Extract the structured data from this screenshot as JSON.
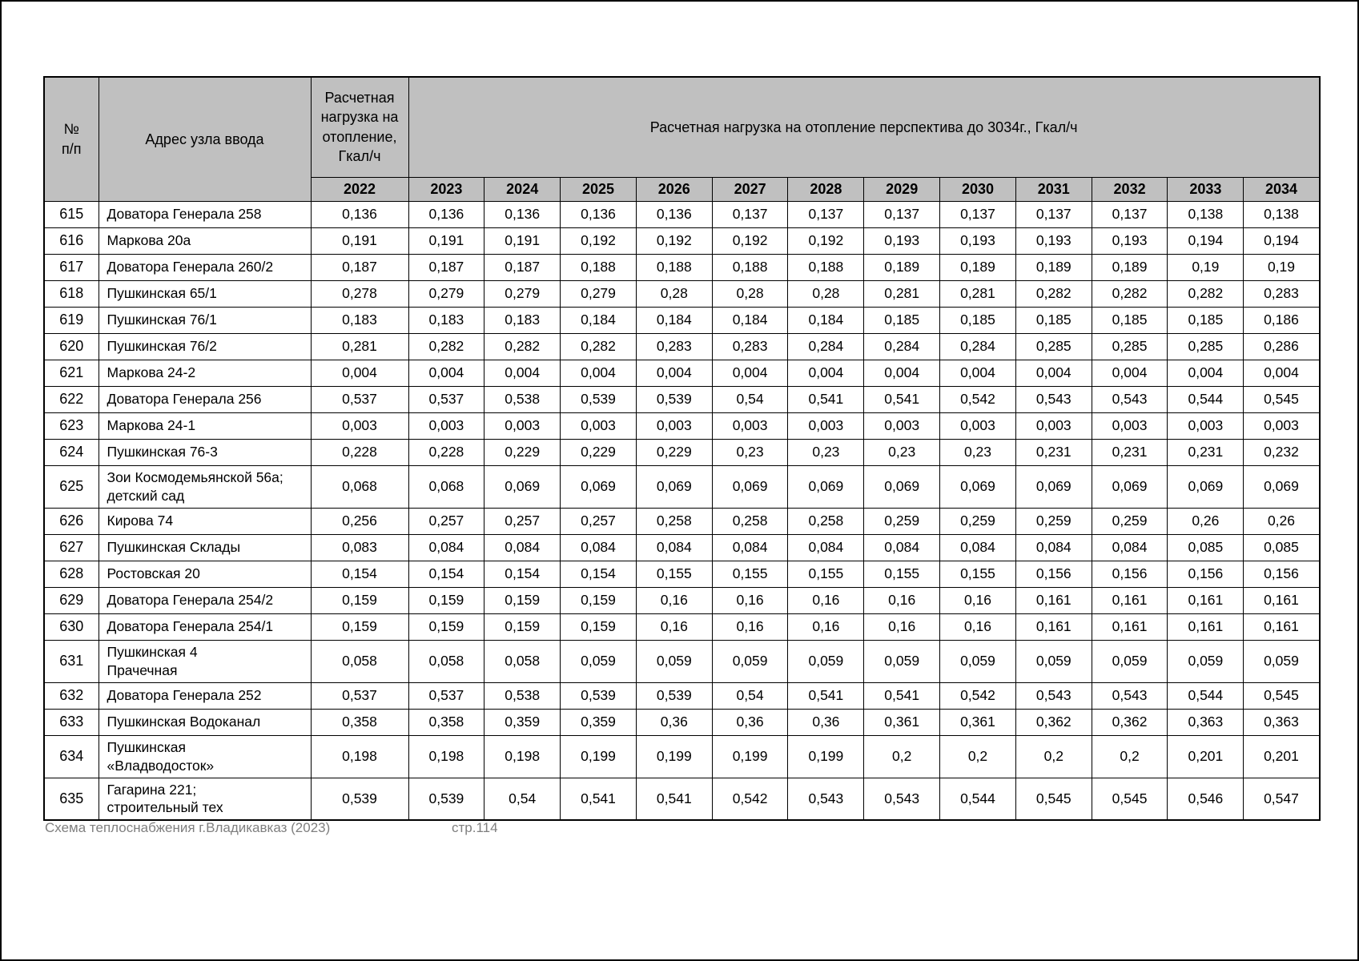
{
  "table": {
    "header": {
      "col_num": "№\nп/п",
      "col_address": "Адрес узла ввода",
      "col_load_2022": "Расчетная нагрузка на отопление, Гкал/ч",
      "col_perspective": "Расчетная нагрузка на отопление перспектива до 3034г., Гкал/ч",
      "years": [
        "2022",
        "2023",
        "2024",
        "2025",
        "2026",
        "2027",
        "2028",
        "2029",
        "2030",
        "2031",
        "2032",
        "2033",
        "2034"
      ]
    },
    "rows": [
      {
        "num": "615",
        "address": "Доватора Генерала 258",
        "values": [
          "0,136",
          "0,136",
          "0,136",
          "0,136",
          "0,136",
          "0,137",
          "0,137",
          "0,137",
          "0,137",
          "0,137",
          "0,137",
          "0,138",
          "0,138"
        ]
      },
      {
        "num": "616",
        "address": "Маркова 20а",
        "values": [
          "0,191",
          "0,191",
          "0,191",
          "0,192",
          "0,192",
          "0,192",
          "0,192",
          "0,193",
          "0,193",
          "0,193",
          "0,193",
          "0,194",
          "0,194"
        ]
      },
      {
        "num": "617",
        "address": "Доватора Генерала 260/2",
        "values": [
          "0,187",
          "0,187",
          "0,187",
          "0,188",
          "0,188",
          "0,188",
          "0,188",
          "0,189",
          "0,189",
          "0,189",
          "0,189",
          "0,19",
          "0,19"
        ]
      },
      {
        "num": "618",
        "address": "Пушкинская 65/1",
        "values": [
          "0,278",
          "0,279",
          "0,279",
          "0,279",
          "0,28",
          "0,28",
          "0,28",
          "0,281",
          "0,281",
          "0,282",
          "0,282",
          "0,282",
          "0,283"
        ]
      },
      {
        "num": "619",
        "address": "Пушкинская 76/1",
        "values": [
          "0,183",
          "0,183",
          "0,183",
          "0,184",
          "0,184",
          "0,184",
          "0,184",
          "0,185",
          "0,185",
          "0,185",
          "0,185",
          "0,185",
          "0,186"
        ]
      },
      {
        "num": "620",
        "address": "Пушкинская 76/2",
        "values": [
          "0,281",
          "0,282",
          "0,282",
          "0,282",
          "0,283",
          "0,283",
          "0,284",
          "0,284",
          "0,284",
          "0,285",
          "0,285",
          "0,285",
          "0,286"
        ]
      },
      {
        "num": "621",
        "address": "Маркова 24-2",
        "values": [
          "0,004",
          "0,004",
          "0,004",
          "0,004",
          "0,004",
          "0,004",
          "0,004",
          "0,004",
          "0,004",
          "0,004",
          "0,004",
          "0,004",
          "0,004"
        ]
      },
      {
        "num": "622",
        "address": "Доватора Генерала 256",
        "values": [
          "0,537",
          "0,537",
          "0,538",
          "0,539",
          "0,539",
          "0,54",
          "0,541",
          "0,541",
          "0,542",
          "0,543",
          "0,543",
          "0,544",
          "0,545"
        ]
      },
      {
        "num": "623",
        "address": "Маркова 24-1",
        "values": [
          "0,003",
          "0,003",
          "0,003",
          "0,003",
          "0,003",
          "0,003",
          "0,003",
          "0,003",
          "0,003",
          "0,003",
          "0,003",
          "0,003",
          "0,003"
        ]
      },
      {
        "num": "624",
        "address": "Пушкинская 76-3",
        "values": [
          "0,228",
          "0,228",
          "0,229",
          "0,229",
          "0,229",
          "0,23",
          "0,23",
          "0,23",
          "0,23",
          "0,231",
          "0,231",
          "0,231",
          "0,232"
        ]
      },
      {
        "num": "625",
        "address": "Зои Космодемьянской 56а; детский сад",
        "values": [
          "0,068",
          "0,068",
          "0,069",
          "0,069",
          "0,069",
          "0,069",
          "0,069",
          "0,069",
          "0,069",
          "0,069",
          "0,069",
          "0,069",
          "0,069"
        ]
      },
      {
        "num": "626",
        "address": "Кирова 74",
        "values": [
          "0,256",
          "0,257",
          "0,257",
          "0,257",
          "0,258",
          "0,258",
          "0,258",
          "0,259",
          "0,259",
          "0,259",
          "0,259",
          "0,26",
          "0,26"
        ]
      },
      {
        "num": "627",
        "address": "Пушкинская Склады",
        "values": [
          "0,083",
          "0,084",
          "0,084",
          "0,084",
          "0,084",
          "0,084",
          "0,084",
          "0,084",
          "0,084",
          "0,084",
          "0,084",
          "0,085",
          "0,085"
        ]
      },
      {
        "num": "628",
        "address": "Ростовская 20",
        "values": [
          "0,154",
          "0,154",
          "0,154",
          "0,154",
          "0,155",
          "0,155",
          "0,155",
          "0,155",
          "0,155",
          "0,156",
          "0,156",
          "0,156",
          "0,156"
        ]
      },
      {
        "num": "629",
        "address": "Доватора Генерала 254/2",
        "values": [
          "0,159",
          "0,159",
          "0,159",
          "0,159",
          "0,16",
          "0,16",
          "0,16",
          "0,16",
          "0,16",
          "0,161",
          "0,161",
          "0,161",
          "0,161"
        ]
      },
      {
        "num": "630",
        "address": "Доватора Генерала 254/1",
        "values": [
          "0,159",
          "0,159",
          "0,159",
          "0,159",
          "0,16",
          "0,16",
          "0,16",
          "0,16",
          "0,16",
          "0,161",
          "0,161",
          "0,161",
          "0,161"
        ]
      },
      {
        "num": "631",
        "address": "Пушкинская 4\nПрачечная",
        "values": [
          "0,058",
          "0,058",
          "0,058",
          "0,059",
          "0,059",
          "0,059",
          "0,059",
          "0,059",
          "0,059",
          "0,059",
          "0,059",
          "0,059",
          "0,059"
        ]
      },
      {
        "num": "632",
        "address": "Доватора Генерала 252",
        "values": [
          "0,537",
          "0,537",
          "0,538",
          "0,539",
          "0,539",
          "0,54",
          "0,541",
          "0,541",
          "0,542",
          "0,543",
          "0,543",
          "0,544",
          "0,545"
        ]
      },
      {
        "num": "633",
        "address": "Пушкинская Водоканал",
        "values": [
          "0,358",
          "0,358",
          "0,359",
          "0,359",
          "0,36",
          "0,36",
          "0,36",
          "0,361",
          "0,361",
          "0,362",
          "0,362",
          "0,363",
          "0,363"
        ]
      },
      {
        "num": "634",
        "address": "Пушкинская\n«Владводосток»",
        "values": [
          "0,198",
          "0,198",
          "0,198",
          "0,199",
          "0,199",
          "0,199",
          "0,199",
          "0,2",
          "0,2",
          "0,2",
          "0,2",
          "0,201",
          "0,201"
        ]
      },
      {
        "num": "635",
        "address": "Гагарина 221;\nстроительный тех",
        "values": [
          "0,539",
          "0,539",
          "0,54",
          "0,541",
          "0,541",
          "0,542",
          "0,543",
          "0,543",
          "0,544",
          "0,545",
          "0,545",
          "0,546",
          "0,547"
        ]
      }
    ]
  },
  "footer": {
    "source": "Схема теплоснабжения г.Владикавказ (2023)",
    "page": "стр.114"
  }
}
